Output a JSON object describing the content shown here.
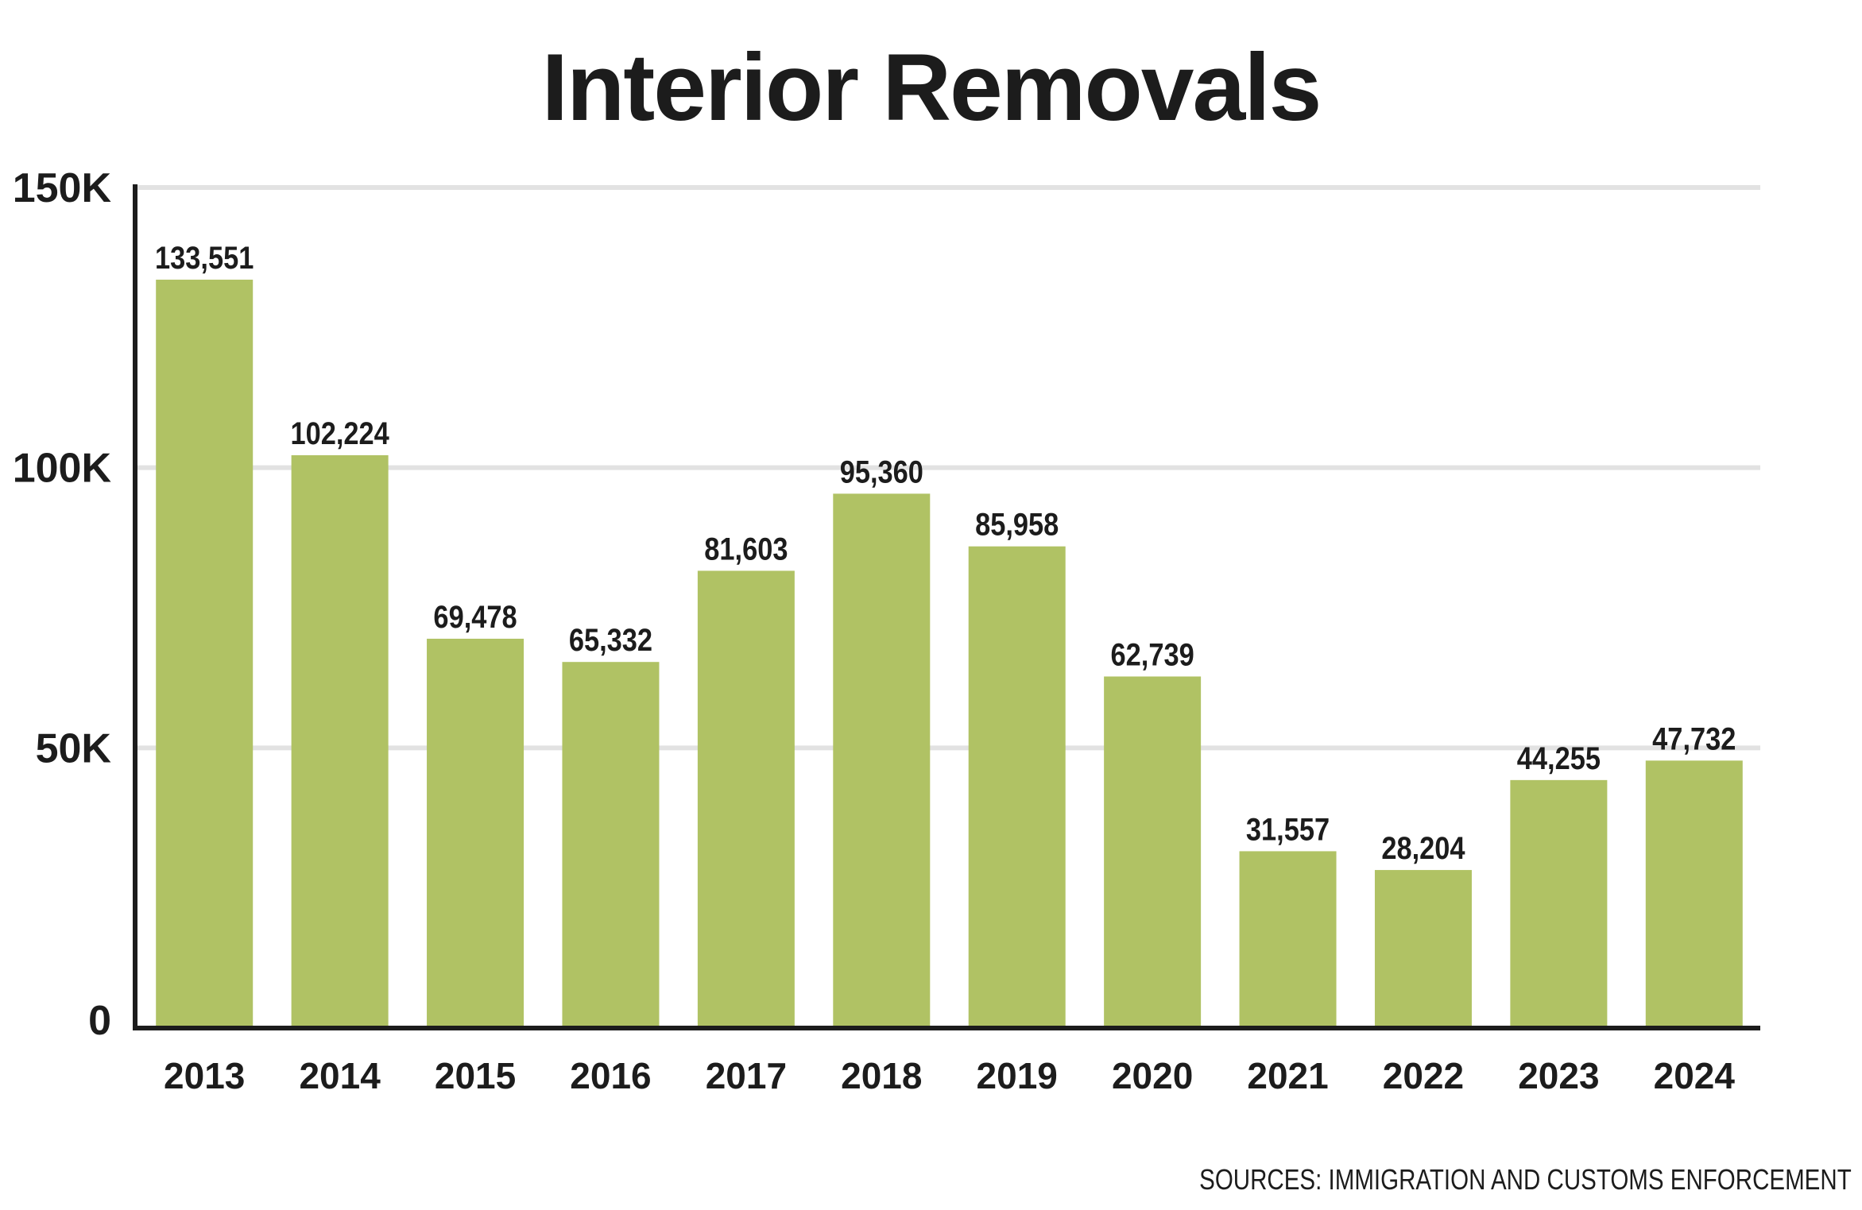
{
  "chart_data": {
    "type": "bar",
    "title": "Interior Removals",
    "categories": [
      "2013",
      "2014",
      "2015",
      "2016",
      "2017",
      "2018",
      "2019",
      "2020",
      "2021",
      "2022",
      "2023",
      "2024"
    ],
    "values": [
      133551,
      102224,
      69478,
      65332,
      81603,
      95360,
      85958,
      62739,
      31557,
      28204,
      44255,
      47732
    ],
    "data_labels": [
      "133,551",
      "102,224",
      "69,478",
      "65,332",
      "81,603",
      "95,360",
      "85,958",
      "62,739",
      "31,557",
      "28,204",
      "44,255",
      "47,732"
    ],
    "yticks": [
      0,
      50000,
      100000,
      150000
    ],
    "ytick_labels": [
      "0",
      "50K",
      "100K",
      "150K"
    ],
    "ylim": [
      0,
      150000
    ],
    "xlabel": "",
    "ylabel": "",
    "grid": true,
    "legend": "none",
    "bar_color": "#b0c264",
    "text_color": "#1c1c1c",
    "grid_color": "#e2e2e2"
  },
  "source": "SOURCES: IMMIGRATION AND CUSTOMS ENFORCEMENT"
}
